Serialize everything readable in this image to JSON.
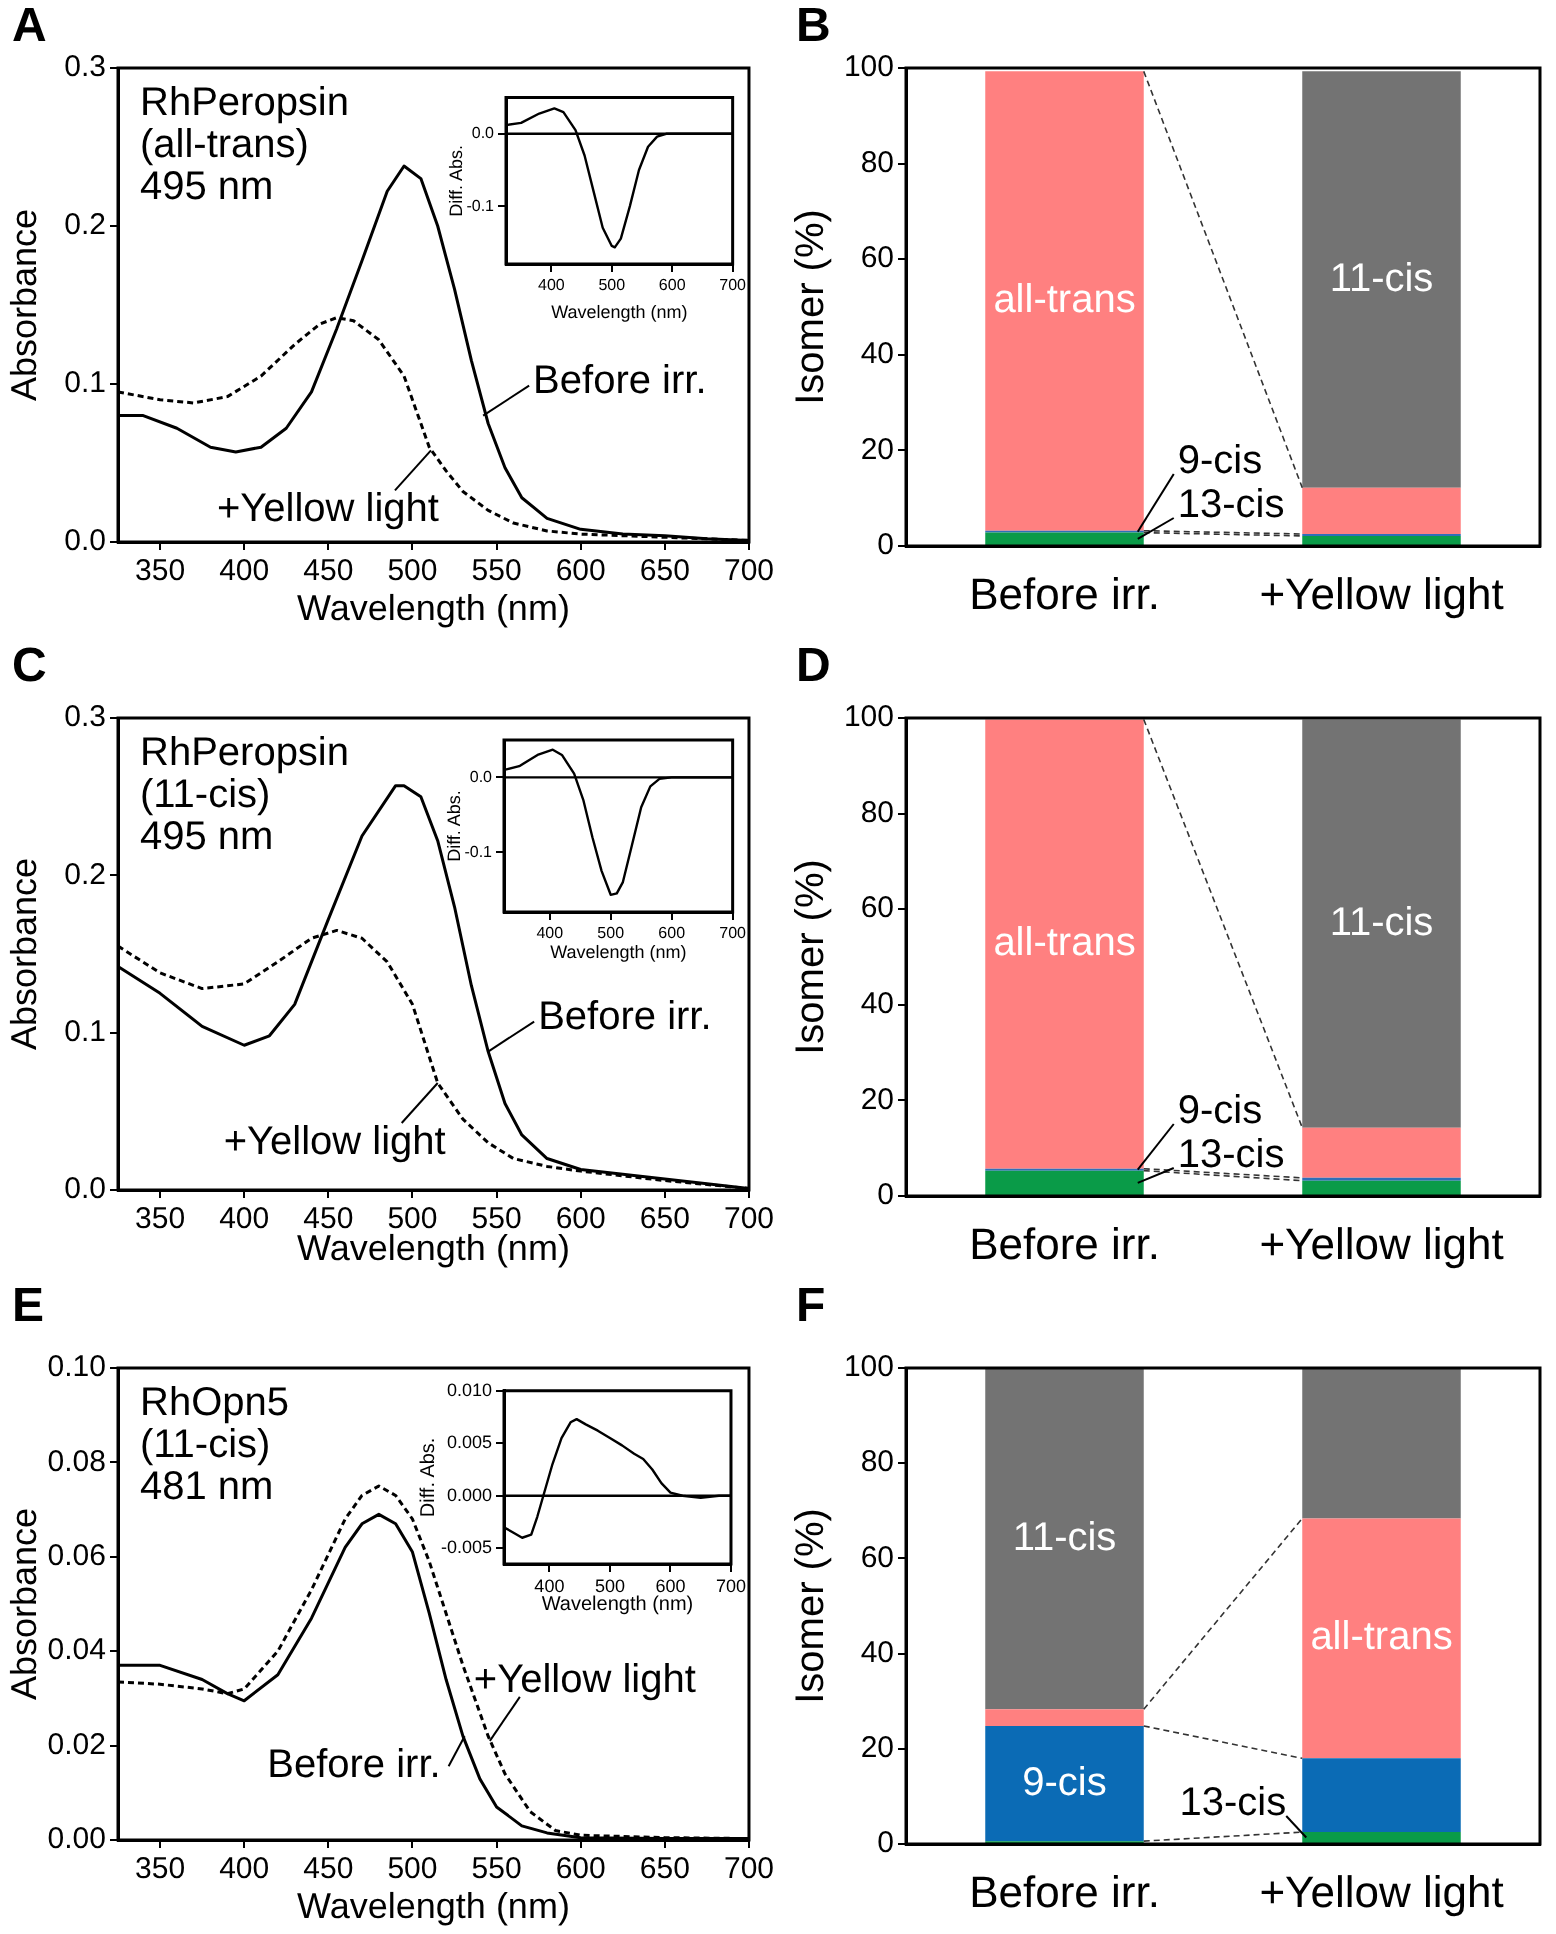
{
  "chart_data": [
    {
      "type": "line",
      "title": "A",
      "subtitle": "RhPeropsin\n(all-trans)\n495 nm",
      "xlabel": "Wavelength (nm)",
      "ylabel": "Absorbance",
      "xlim": [
        325,
        700
      ],
      "ylim": [
        0,
        0.3
      ],
      "xticks": [
        350,
        400,
        450,
        500,
        550,
        600,
        650,
        700
      ],
      "yticks": [
        {
          "value": 0,
          "label": "0.0"
        },
        {
          "value": 0.1,
          "label": "0.1"
        },
        {
          "value": 0.2,
          "label": "0.2"
        },
        {
          "value": 0.3,
          "label": "0.3"
        }
      ],
      "marker": "none",
      "series": [
        {
          "color": "#000000",
          "line_style": "solid",
          "x": [
            325,
            340,
            360,
            380,
            395,
            410,
            425,
            440,
            455,
            470,
            485,
            495,
            505,
            515,
            525,
            535,
            545,
            555,
            565,
            580,
            600,
            625,
            650,
            675,
            700
          ],
          "values": [
            0.08,
            0.08,
            0.072,
            0.06,
            0.057,
            0.06,
            0.072,
            0.095,
            0.135,
            0.178,
            0.222,
            0.238,
            0.23,
            0.2,
            0.16,
            0.115,
            0.075,
            0.047,
            0.028,
            0.015,
            0.008,
            0.005,
            0.004,
            0.002,
            0.001
          ]
        },
        {
          "color": "#000000",
          "line_style": "dashed",
          "x": [
            325,
            350,
            370,
            390,
            410,
            430,
            445,
            455,
            465,
            480,
            495,
            510,
            520,
            530,
            545,
            560,
            580,
            600,
            650,
            700
          ],
          "values": [
            0.095,
            0.09,
            0.088,
            0.092,
            0.105,
            0.125,
            0.138,
            0.142,
            0.14,
            0.128,
            0.105,
            0.06,
            0.045,
            0.032,
            0.02,
            0.012,
            0.007,
            0.005,
            0.003,
            0.001
          ]
        }
      ],
      "annotations": [
        {
          "text": "Before irr.",
          "x": 542,
          "y": 0.08
        },
        {
          "text": "+Yellow light",
          "x": 511,
          "y": 0.058
        }
      ]
    },
    {
      "type": "line",
      "xlabel": "Wavelength (nm)",
      "ylabel": "Diff. Abs.",
      "xlim": [
        325,
        700
      ],
      "ylim": [
        -0.18,
        0.05
      ],
      "xticks": [
        400,
        500,
        600,
        700
      ],
      "yticks": [
        {
          "value": -0.1,
          "label": "-0.1"
        },
        {
          "value": 0,
          "label": "0.0"
        }
      ],
      "marker": "none",
      "series": [
        {
          "color": "#000000",
          "line_style": "solid",
          "x": [
            325,
            350,
            380,
            405,
            420,
            440,
            455,
            470,
            485,
            500,
            505,
            515,
            530,
            545,
            560,
            575,
            590,
            700
          ],
          "values": [
            0.012,
            0.015,
            0.028,
            0.035,
            0.03,
            0.005,
            -0.03,
            -0.08,
            -0.13,
            -0.155,
            -0.157,
            -0.145,
            -0.1,
            -0.05,
            -0.018,
            -0.004,
            0.0,
            0.0
          ]
        }
      ],
      "ref_lines": [
        {
          "axis": "y",
          "value": 0,
          "color": "#000000"
        }
      ]
    },
    {
      "type": "bar",
      "title": "B",
      "ylabel": "Isomer (%)",
      "categories": [
        "Before irr.",
        "+Yellow light"
      ],
      "stacked": true,
      "ylim": [
        0,
        100
      ],
      "yticks": [
        0,
        20,
        40,
        60,
        80,
        100
      ],
      "series": [
        {
          "name": "13-cis",
          "color": "#0a9b48",
          "values": [
            2.8,
            2.1
          ]
        },
        {
          "name": "9-cis",
          "color": "#2f6fb8",
          "values": [
            0.4,
            0.4
          ]
        },
        {
          "name": "all-trans",
          "color": "#ff8080",
          "values": [
            96.1,
            9.7
          ]
        },
        {
          "name": "11-cis",
          "color": "#737373",
          "values": [
            0,
            87.1
          ]
        }
      ]
    },
    {
      "type": "line",
      "title": "C",
      "subtitle": "RhPeropsin\n(11-cis)\n495 nm",
      "xlabel": "Wavelength (nm)",
      "ylabel": "Absorbance",
      "xlim": [
        325,
        700
      ],
      "ylim": [
        0,
        0.3
      ],
      "xticks": [
        350,
        400,
        450,
        500,
        550,
        600,
        650,
        700
      ],
      "yticks": [
        {
          "value": 0,
          "label": "0.0"
        },
        {
          "value": 0.1,
          "label": "0.1"
        },
        {
          "value": 0.2,
          "label": "0.2"
        },
        {
          "value": 0.3,
          "label": "0.3"
        }
      ],
      "marker": "none",
      "series": [
        {
          "color": "#000000",
          "line_style": "solid",
          "x": [
            325,
            350,
            375,
            400,
            415,
            430,
            450,
            470,
            490,
            495,
            505,
            515,
            525,
            535,
            545,
            555,
            565,
            580,
            600,
            625,
            650,
            675,
            700
          ],
          "values": [
            0.142,
            0.125,
            0.104,
            0.092,
            0.098,
            0.118,
            0.172,
            0.225,
            0.257,
            0.257,
            0.25,
            0.222,
            0.18,
            0.13,
            0.088,
            0.055,
            0.035,
            0.02,
            0.013,
            0.01,
            0.007,
            0.004,
            0.001
          ]
        },
        {
          "color": "#000000",
          "line_style": "dashed",
          "x": [
            325,
            350,
            375,
            400,
            420,
            440,
            455,
            470,
            485,
            500,
            515,
            530,
            545,
            560,
            580,
            600,
            650,
            700
          ],
          "values": [
            0.155,
            0.138,
            0.128,
            0.131,
            0.145,
            0.16,
            0.165,
            0.16,
            0.145,
            0.118,
            0.068,
            0.045,
            0.03,
            0.02,
            0.015,
            0.012,
            0.006,
            0.001
          ]
        }
      ],
      "annotations": [
        {
          "text": "Before irr.",
          "x": 545,
          "y": 0.088
        },
        {
          "text": "+Yellow light",
          "x": 515,
          "y": 0.068
        }
      ]
    },
    {
      "type": "line",
      "xlabel": "Wavelength (nm)",
      "ylabel": "Diff. Abs.",
      "xlim": [
        325,
        700
      ],
      "ylim": [
        -0.18,
        0.05
      ],
      "xticks": [
        400,
        500,
        600,
        700
      ],
      "yticks": [
        {
          "value": -0.1,
          "label": "-0.1"
        },
        {
          "value": 0,
          "label": "0.0"
        }
      ],
      "marker": "none",
      "series": [
        {
          "color": "#000000",
          "line_style": "solid",
          "x": [
            325,
            350,
            380,
            405,
            420,
            440,
            455,
            470,
            485,
            500,
            510,
            520,
            535,
            550,
            565,
            580,
            600,
            700
          ],
          "values": [
            0.01,
            0.015,
            0.03,
            0.037,
            0.03,
            0.005,
            -0.03,
            -0.08,
            -0.125,
            -0.157,
            -0.155,
            -0.14,
            -0.09,
            -0.04,
            -0.012,
            -0.002,
            0.0,
            0.0
          ]
        }
      ],
      "ref_lines": [
        {
          "axis": "y",
          "value": 0,
          "color": "#000000"
        }
      ]
    },
    {
      "type": "bar",
      "title": "D",
      "ylabel": "Isomer (%)",
      "categories": [
        "Before irr.",
        "+Yellow light"
      ],
      "stacked": true,
      "ylim": [
        0,
        100
      ],
      "yticks": [
        0,
        20,
        40,
        60,
        80,
        100
      ],
      "series": [
        {
          "name": "13-cis",
          "color": "#0a9b48",
          "values": [
            5.3,
            3.2
          ]
        },
        {
          "name": "9-cis",
          "color": "#2f6fb8",
          "values": [
            0.4,
            0.6
          ]
        },
        {
          "name": "all-trans",
          "color": "#ff8080",
          "values": [
            94.0,
            10.5
          ]
        },
        {
          "name": "11-cis",
          "color": "#737373",
          "values": [
            0,
            85.4
          ]
        }
      ]
    },
    {
      "type": "line",
      "title": "E",
      "subtitle": "RhOpn5\n(11-cis)\n481 nm",
      "xlabel": "Wavelength (nm)",
      "ylabel": "Absorbance",
      "xlim": [
        325,
        700
      ],
      "ylim": [
        0,
        0.1
      ],
      "xticks": [
        350,
        400,
        450,
        500,
        550,
        600,
        650,
        700
      ],
      "yticks": [
        {
          "value": 0,
          "label": "0.00"
        },
        {
          "value": 0.02,
          "label": "0.02"
        },
        {
          "value": 0.04,
          "label": "0.04"
        },
        {
          "value": 0.06,
          "label": "0.06"
        },
        {
          "value": 0.08,
          "label": "0.08"
        },
        {
          "value": 0.1,
          "label": "0.10"
        }
      ],
      "marker": "none",
      "series": [
        {
          "color": "#000000",
          "line_style": "solid",
          "x": [
            325,
            350,
            375,
            390,
            400,
            420,
            440,
            460,
            470,
            480,
            490,
            500,
            510,
            520,
            530,
            540,
            550,
            565,
            580,
            600,
            650,
            700
          ],
          "values": [
            0.037,
            0.037,
            0.034,
            0.031,
            0.0295,
            0.035,
            0.047,
            0.062,
            0.067,
            0.069,
            0.067,
            0.061,
            0.048,
            0.034,
            0.022,
            0.013,
            0.007,
            0.003,
            0.0015,
            0.0005,
            0.0003,
            0.0003
          ]
        },
        {
          "color": "#000000",
          "line_style": "dashed",
          "x": [
            325,
            350,
            375,
            390,
            400,
            420,
            440,
            460,
            470,
            480,
            490,
            500,
            510,
            520,
            530,
            545,
            555,
            570,
            585,
            600,
            650,
            700
          ],
          "values": [
            0.0335,
            0.033,
            0.032,
            0.031,
            0.032,
            0.04,
            0.053,
            0.068,
            0.073,
            0.075,
            0.073,
            0.068,
            0.059,
            0.048,
            0.037,
            0.022,
            0.014,
            0.006,
            0.002,
            0.001,
            0.0005,
            0.0003
          ]
        }
      ],
      "annotations": [
        {
          "text": "Before irr.",
          "x": 531,
          "y": 0.022
        },
        {
          "text": "+Yellow light",
          "x": 546,
          "y": 0.021
        }
      ]
    },
    {
      "type": "line",
      "xlabel": "Wavelength (nm)",
      "ylabel": "Diff. Abs.",
      "xlim": [
        325,
        700
      ],
      "ylim": [
        -0.0065,
        0.01
      ],
      "xticks": [
        400,
        500,
        600,
        700
      ],
      "yticks": [
        {
          "value": -0.005,
          "label": "-0.005"
        },
        {
          "value": 0,
          "label": "0.000"
        },
        {
          "value": 0.005,
          "label": "0.005"
        },
        {
          "value": 0.01,
          "label": "0.010"
        }
      ],
      "marker": "none",
      "series": [
        {
          "color": "#000000",
          "line_style": "solid",
          "x": [
            325,
            340,
            355,
            370,
            380,
            390,
            405,
            420,
            435,
            445,
            460,
            480,
            500,
            520,
            540,
            555,
            570,
            585,
            600,
            620,
            650,
            680,
            700
          ],
          "values": [
            -0.003,
            -0.0035,
            -0.004,
            -0.0037,
            -0.002,
            0.0,
            0.003,
            0.0055,
            0.007,
            0.0073,
            0.0068,
            0.0062,
            0.0055,
            0.0048,
            0.004,
            0.0035,
            0.0025,
            0.0012,
            0.0003,
            0.0,
            -0.0002,
            0.0,
            0.0
          ]
        }
      ],
      "ref_lines": [
        {
          "axis": "y",
          "value": 0,
          "color": "#000000"
        }
      ]
    },
    {
      "type": "bar",
      "title": "F",
      "ylabel": "Isomer (%)",
      "categories": [
        "Before irr.",
        "+Yellow light"
      ],
      "stacked": true,
      "ylim": [
        0,
        100
      ],
      "yticks": [
        0,
        20,
        40,
        60,
        80,
        100
      ],
      "series": [
        {
          "name": "13-cis",
          "color": "#0a9b48",
          "values": [
            0.6,
            2.5
          ]
        },
        {
          "name": "9-cis",
          "color": "#0b6bb5",
          "values": [
            24.2,
            15.5
          ]
        },
        {
          "name": "all-trans",
          "color": "#ff8080",
          "values": [
            3.5,
            50.4
          ]
        },
        {
          "name": "11-cis",
          "color": "#737373",
          "values": [
            71.7,
            31.6
          ]
        }
      ]
    }
  ]
}
